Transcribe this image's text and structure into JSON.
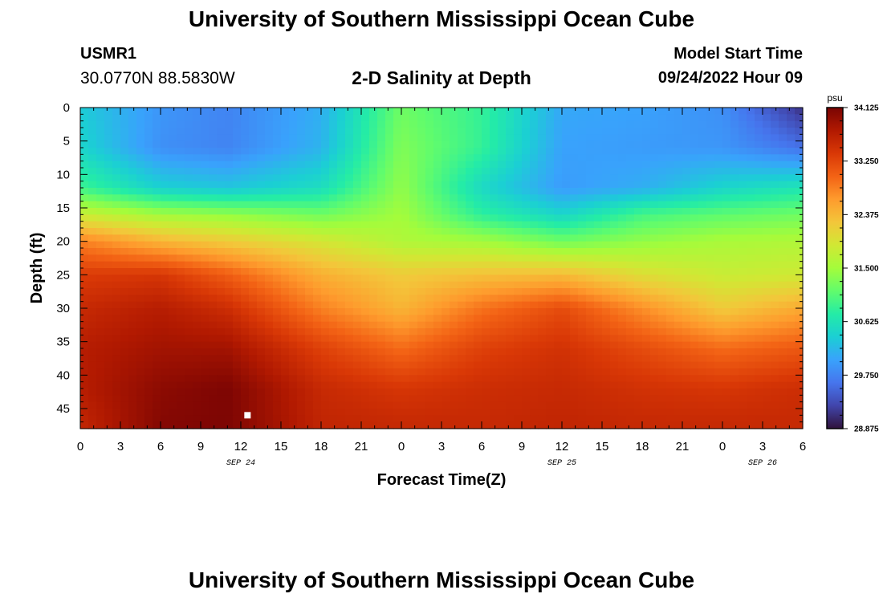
{
  "header": {
    "title": "University of Southern Mississippi Ocean Cube",
    "station": "USMR1",
    "coords": "30.0770N  88.5830W",
    "subtitle": "2-D Salinity at Depth",
    "model_start_label": "Model Start Time",
    "model_start_value": "09/24/2022 Hour 09"
  },
  "footer": {
    "title": "University of Southern Mississippi Ocean Cube"
  },
  "chart_data": {
    "type": "heatmap",
    "xlabel": "Forecast Time(Z)",
    "ylabel": "Depth (ft)",
    "x_tick_labels": [
      "0",
      "3",
      "6",
      "9",
      "12",
      "15",
      "18",
      "21",
      "0",
      "3",
      "6",
      "9",
      "12",
      "15",
      "18",
      "21",
      "0",
      "3",
      "6"
    ],
    "date_labels": [
      {
        "text": "SEP 24",
        "at_tick": 4
      },
      {
        "text": "SEP 25",
        "at_tick": 12
      },
      {
        "text": "SEP 26",
        "at_tick": 17
      }
    ],
    "y_tick_labels": [
      "0",
      "5",
      "10",
      "15",
      "20",
      "25",
      "30",
      "35",
      "40",
      "45"
    ],
    "y_range": [
      0,
      48
    ],
    "time_range_hours": [
      0,
      54
    ],
    "colorbar": {
      "unit": "psu",
      "min": 28.875,
      "max": 34.125,
      "tick_labels": [
        "34.125",
        "33.250",
        "32.375",
        "31.500",
        "30.625",
        "29.750",
        "28.875"
      ],
      "colors": [
        "#30123b",
        "#4145ab",
        "#4675ed",
        "#39a2fc",
        "#1bcfd4",
        "#24eca6",
        "#61fc6c",
        "#a4fc3b",
        "#d1e834",
        "#f3c63a",
        "#fe9b2d",
        "#f36315",
        "#d93806",
        "#b11901",
        "#7a0403"
      ]
    },
    "marker": {
      "time_hour": 12.5,
      "depth_ft": 46,
      "color": "#ffffff"
    },
    "depths_ft": [
      0,
      6,
      12,
      16,
      20,
      25,
      30,
      36,
      42,
      47
    ],
    "times_hours": [
      0,
      6,
      11,
      18,
      24,
      30,
      36,
      42,
      48,
      54
    ],
    "salinity_psu": [
      [
        30.35,
        29.9,
        29.75,
        30.1,
        31.2,
        30.85,
        30.05,
        30.0,
        29.85,
        29.1
      ],
      [
        30.45,
        29.85,
        29.75,
        30.15,
        31.3,
        30.85,
        30.0,
        29.95,
        29.9,
        29.6
      ],
      [
        30.9,
        30.4,
        30.3,
        30.55,
        31.4,
        30.5,
        29.95,
        30.1,
        30.45,
        30.65
      ],
      [
        31.8,
        31.5,
        31.4,
        31.2,
        31.5,
        30.8,
        30.45,
        30.95,
        31.1,
        31.2
      ],
      [
        32.8,
        32.4,
        32.2,
        31.9,
        31.6,
        31.5,
        31.2,
        31.4,
        31.55,
        31.6
      ],
      [
        33.35,
        33.4,
        33.05,
        32.45,
        32.2,
        32.3,
        32.35,
        32.0,
        31.8,
        31.85
      ],
      [
        33.55,
        33.7,
        33.5,
        32.8,
        32.4,
        32.9,
        33.2,
        32.7,
        32.2,
        32.5
      ],
      [
        33.7,
        33.85,
        33.85,
        33.3,
        32.95,
        33.3,
        33.45,
        33.2,
        32.95,
        33.1
      ],
      [
        33.7,
        34.0,
        34.1,
        33.55,
        33.4,
        33.5,
        33.55,
        33.45,
        33.4,
        33.5
      ],
      [
        33.6,
        34.05,
        34.1,
        33.6,
        33.55,
        33.55,
        33.6,
        33.55,
        33.55,
        33.55
      ]
    ]
  }
}
